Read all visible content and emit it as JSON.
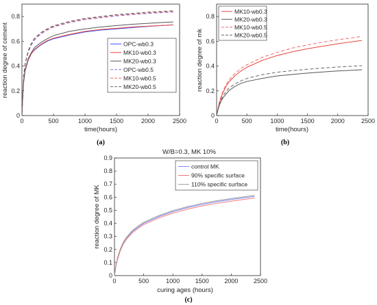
{
  "chart_data": [
    {
      "id": "a",
      "type": "line",
      "caption": "(a)",
      "title": "",
      "xlabel": "time(hours)",
      "ylabel": "reaction degree of cement",
      "xlim": [
        0,
        2500
      ],
      "ylim": [
        0,
        0.9
      ],
      "xticks": [
        0,
        500,
        1000,
        1500,
        2000,
        2500
      ],
      "yticks": [
        0,
        0.2,
        0.4,
        0.6,
        0.8
      ],
      "grid": false,
      "legend_position": "center-right",
      "x": [
        0,
        10,
        25,
        50,
        100,
        150,
        200,
        300,
        400,
        500,
        750,
        1000,
        1250,
        1500,
        1750,
        2000,
        2250,
        2400
      ],
      "series": [
        {
          "name": "OPC-wb0.3",
          "color": "#3a55ff",
          "dash": "solid",
          "values": [
            0,
            0.12,
            0.26,
            0.36,
            0.45,
            0.5,
            0.53,
            0.57,
            0.6,
            0.62,
            0.65,
            0.675,
            0.69,
            0.7,
            0.71,
            0.72,
            0.728,
            0.732
          ]
        },
        {
          "name": "MK10-wb0.3",
          "color": "#e8453c",
          "dash": "solid",
          "values": [
            0,
            0.12,
            0.26,
            0.36,
            0.45,
            0.5,
            0.535,
            0.575,
            0.605,
            0.625,
            0.655,
            0.68,
            0.695,
            0.705,
            0.715,
            0.722,
            0.728,
            0.732
          ]
        },
        {
          "name": "MK20-wb0.3",
          "color": "#555555",
          "dash": "solid",
          "values": [
            0,
            0.12,
            0.27,
            0.37,
            0.46,
            0.51,
            0.55,
            0.59,
            0.62,
            0.645,
            0.68,
            0.7,
            0.715,
            0.727,
            0.737,
            0.745,
            0.752,
            0.756
          ]
        },
        {
          "name": "OPC-wb0.5",
          "color": "#8a6ad0",
          "dash": "dashed",
          "values": [
            0,
            0.14,
            0.3,
            0.41,
            0.51,
            0.57,
            0.61,
            0.66,
            0.69,
            0.715,
            0.75,
            0.775,
            0.79,
            0.805,
            0.815,
            0.825,
            0.832,
            0.836
          ]
        },
        {
          "name": "MK10-wb0.5",
          "color": "#f06a6a",
          "dash": "dashed",
          "values": [
            0,
            0.14,
            0.31,
            0.42,
            0.52,
            0.58,
            0.62,
            0.665,
            0.695,
            0.72,
            0.755,
            0.78,
            0.795,
            0.81,
            0.82,
            0.83,
            0.838,
            0.842
          ]
        },
        {
          "name": "MK20-wb0.5",
          "color": "#666666",
          "dash": "dashed",
          "values": [
            0,
            0.14,
            0.31,
            0.42,
            0.525,
            0.585,
            0.625,
            0.67,
            0.7,
            0.725,
            0.76,
            0.785,
            0.8,
            0.815,
            0.825,
            0.835,
            0.842,
            0.846
          ]
        }
      ]
    },
    {
      "id": "b",
      "type": "line",
      "caption": "(b)",
      "title": "",
      "xlabel": "time(hours)",
      "ylabel": "reaction degree of mk",
      "xlim": [
        0,
        2500
      ],
      "ylim": [
        0,
        0.9
      ],
      "xticks": [
        0,
        500,
        1000,
        1500,
        2000,
        2500
      ],
      "yticks": [
        0,
        0.2,
        0.4,
        0.6,
        0.8
      ],
      "grid": false,
      "legend_position": "top-left",
      "x": [
        0,
        25,
        50,
        100,
        150,
        200,
        300,
        400,
        500,
        750,
        1000,
        1250,
        1500,
        1750,
        2000,
        2250,
        2400
      ],
      "series": [
        {
          "name": "MK10-wb0.3",
          "color": "#e8453c",
          "dash": "solid",
          "values": [
            0,
            0.06,
            0.11,
            0.18,
            0.23,
            0.27,
            0.32,
            0.36,
            0.39,
            0.445,
            0.485,
            0.515,
            0.54,
            0.56,
            0.58,
            0.597,
            0.607
          ]
        },
        {
          "name": "MK20-wb0.3",
          "color": "#555555",
          "dash": "solid",
          "values": [
            0,
            0.05,
            0.09,
            0.14,
            0.17,
            0.2,
            0.235,
            0.26,
            0.275,
            0.3,
            0.32,
            0.332,
            0.343,
            0.352,
            0.36,
            0.366,
            0.37
          ]
        },
        {
          "name": "MK10-wb0.5",
          "color": "#f06a6a",
          "dash": "dashed",
          "values": [
            0,
            0.065,
            0.12,
            0.19,
            0.245,
            0.285,
            0.34,
            0.38,
            0.41,
            0.47,
            0.51,
            0.545,
            0.57,
            0.593,
            0.612,
            0.628,
            0.64
          ]
        },
        {
          "name": "MK20-wb0.5",
          "color": "#666666",
          "dash": "dashed",
          "values": [
            0,
            0.055,
            0.1,
            0.155,
            0.19,
            0.22,
            0.255,
            0.28,
            0.3,
            0.33,
            0.35,
            0.363,
            0.374,
            0.384,
            0.392,
            0.399,
            0.403
          ]
        }
      ]
    },
    {
      "id": "c",
      "type": "line",
      "caption": "(c)",
      "title": "W/B=0.3, MK 10%",
      "xlabel": "curing ages (hours)",
      "ylabel": "reaction degree of MK",
      "xlim": [
        0,
        2500
      ],
      "ylim": [
        0,
        0.9
      ],
      "xticks": [
        0,
        500,
        1000,
        1500,
        2000,
        2500
      ],
      "yticks": [
        0,
        0.1,
        0.2,
        0.3,
        0.4,
        0.5,
        0.6,
        0.7,
        0.8,
        0.9
      ],
      "grid": false,
      "legend_position": "top-right",
      "x": [
        0,
        25,
        50,
        100,
        150,
        200,
        300,
        400,
        500,
        750,
        1000,
        1250,
        1500,
        1750,
        2000,
        2250,
        2400
      ],
      "series": [
        {
          "name": "control MK",
          "color": "#7b86f0",
          "dash": "solid",
          "values": [
            0,
            0.075,
            0.13,
            0.2,
            0.25,
            0.285,
            0.335,
            0.37,
            0.4,
            0.45,
            0.49,
            0.52,
            0.545,
            0.565,
            0.582,
            0.597,
            0.606
          ]
        },
        {
          "name": "90% specific surface",
          "color": "#f07878",
          "dash": "solid",
          "values": [
            0,
            0.07,
            0.12,
            0.19,
            0.24,
            0.275,
            0.325,
            0.36,
            0.39,
            0.44,
            0.478,
            0.508,
            0.533,
            0.553,
            0.57,
            0.585,
            0.594
          ]
        },
        {
          "name": "110% specific surface",
          "color": "#a0a0a0",
          "dash": "solid",
          "values": [
            0,
            0.08,
            0.135,
            0.205,
            0.255,
            0.29,
            0.342,
            0.378,
            0.408,
            0.458,
            0.497,
            0.528,
            0.553,
            0.573,
            0.59,
            0.605,
            0.614
          ]
        }
      ]
    }
  ]
}
